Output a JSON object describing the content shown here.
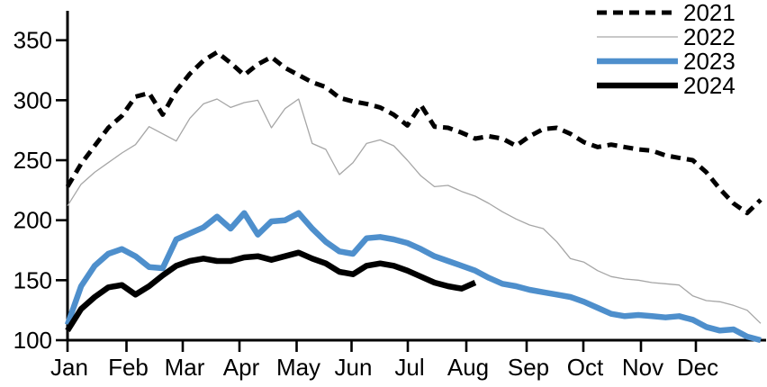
{
  "chart": {
    "title": "",
    "background_color": "#ffffff",
    "axis_color": "#000000",
    "legend": {
      "position": "top-right",
      "items": [
        {
          "label": "2021",
          "swatch": "dashed-black-line"
        },
        {
          "label": "2022",
          "swatch": "thin-gray-line"
        },
        {
          "label": "2023",
          "swatch": "thick-blue-line"
        },
        {
          "label": "2024",
          "swatch": "thick-black-line"
        }
      ]
    }
  },
  "chart_data": {
    "type": "line",
    "title": "",
    "xlabel": "",
    "ylabel": "",
    "x_unit": "weeks (Jan - Dec)",
    "x_tick_labels": [
      "Jan",
      "Feb",
      "Mar",
      "Apr",
      "May",
      "Jun",
      "Jul",
      "Aug",
      "Sep",
      "Oct",
      "Nov",
      "Dec"
    ],
    "y_ticks": [
      100,
      150,
      200,
      250,
      300,
      350
    ],
    "y_tick_labels": [
      "100",
      "150",
      "200",
      "250",
      "300",
      "350"
    ],
    "ylim": [
      100,
      375
    ],
    "grid": false,
    "legend_position": "top-right",
    "series": [
      {
        "name": "2021",
        "style": "dashed",
        "color": "#000000",
        "stroke_width": 5,
        "values": [
          228,
          247,
          262,
          277,
          287,
          303,
          306,
          288,
          308,
          322,
          333,
          340,
          331,
          321,
          330,
          336,
          327,
          321,
          315,
          311,
          302,
          299,
          297,
          294,
          288,
          279,
          296,
          278,
          277,
          273,
          268,
          270,
          268,
          262,
          270,
          276,
          277,
          272,
          265,
          261,
          263,
          261,
          259,
          258,
          254,
          252,
          250,
          240,
          226,
          214,
          206,
          217
        ]
      },
      {
        "name": "2022",
        "style": "solid",
        "color": "#a6a6a6",
        "stroke_width": 1.3,
        "values": [
          212,
          230,
          240,
          248,
          256,
          263,
          278,
          272,
          266,
          285,
          297,
          301,
          294,
          298,
          300,
          277,
          293,
          301,
          264,
          259,
          238,
          248,
          264,
          267,
          262,
          250,
          237,
          228,
          229,
          224,
          220,
          214,
          207,
          201,
          196,
          193,
          182,
          168,
          165,
          158,
          153,
          151,
          150,
          148,
          147,
          146,
          137,
          133,
          132,
          129,
          125,
          114
        ]
      },
      {
        "name": "2023",
        "style": "solid",
        "color": "#4e8fcc",
        "stroke_width": 6.5,
        "values": [
          113,
          145,
          162,
          172,
          176,
          170,
          161,
          160,
          184,
          189,
          194,
          203,
          193,
          206,
          188,
          199,
          200,
          206,
          193,
          182,
          174,
          172,
          185,
          186,
          184,
          181,
          176,
          170,
          166,
          162,
          158,
          152,
          147,
          145,
          142,
          140,
          138,
          136,
          132,
          127,
          122,
          120,
          121,
          120,
          119,
          120,
          117,
          111,
          108,
          109,
          103,
          100
        ]
      },
      {
        "name": "2024",
        "style": "solid",
        "color": "#000000",
        "stroke_width": 6.5,
        "values": [
          108,
          126,
          136,
          144,
          146,
          138,
          145,
          154,
          162,
          166,
          168,
          166,
          166,
          169,
          170,
          167,
          170,
          173,
          168,
          164,
          157,
          155,
          162,
          164,
          162,
          158,
          153,
          148,
          145,
          143,
          148
        ]
      }
    ]
  }
}
